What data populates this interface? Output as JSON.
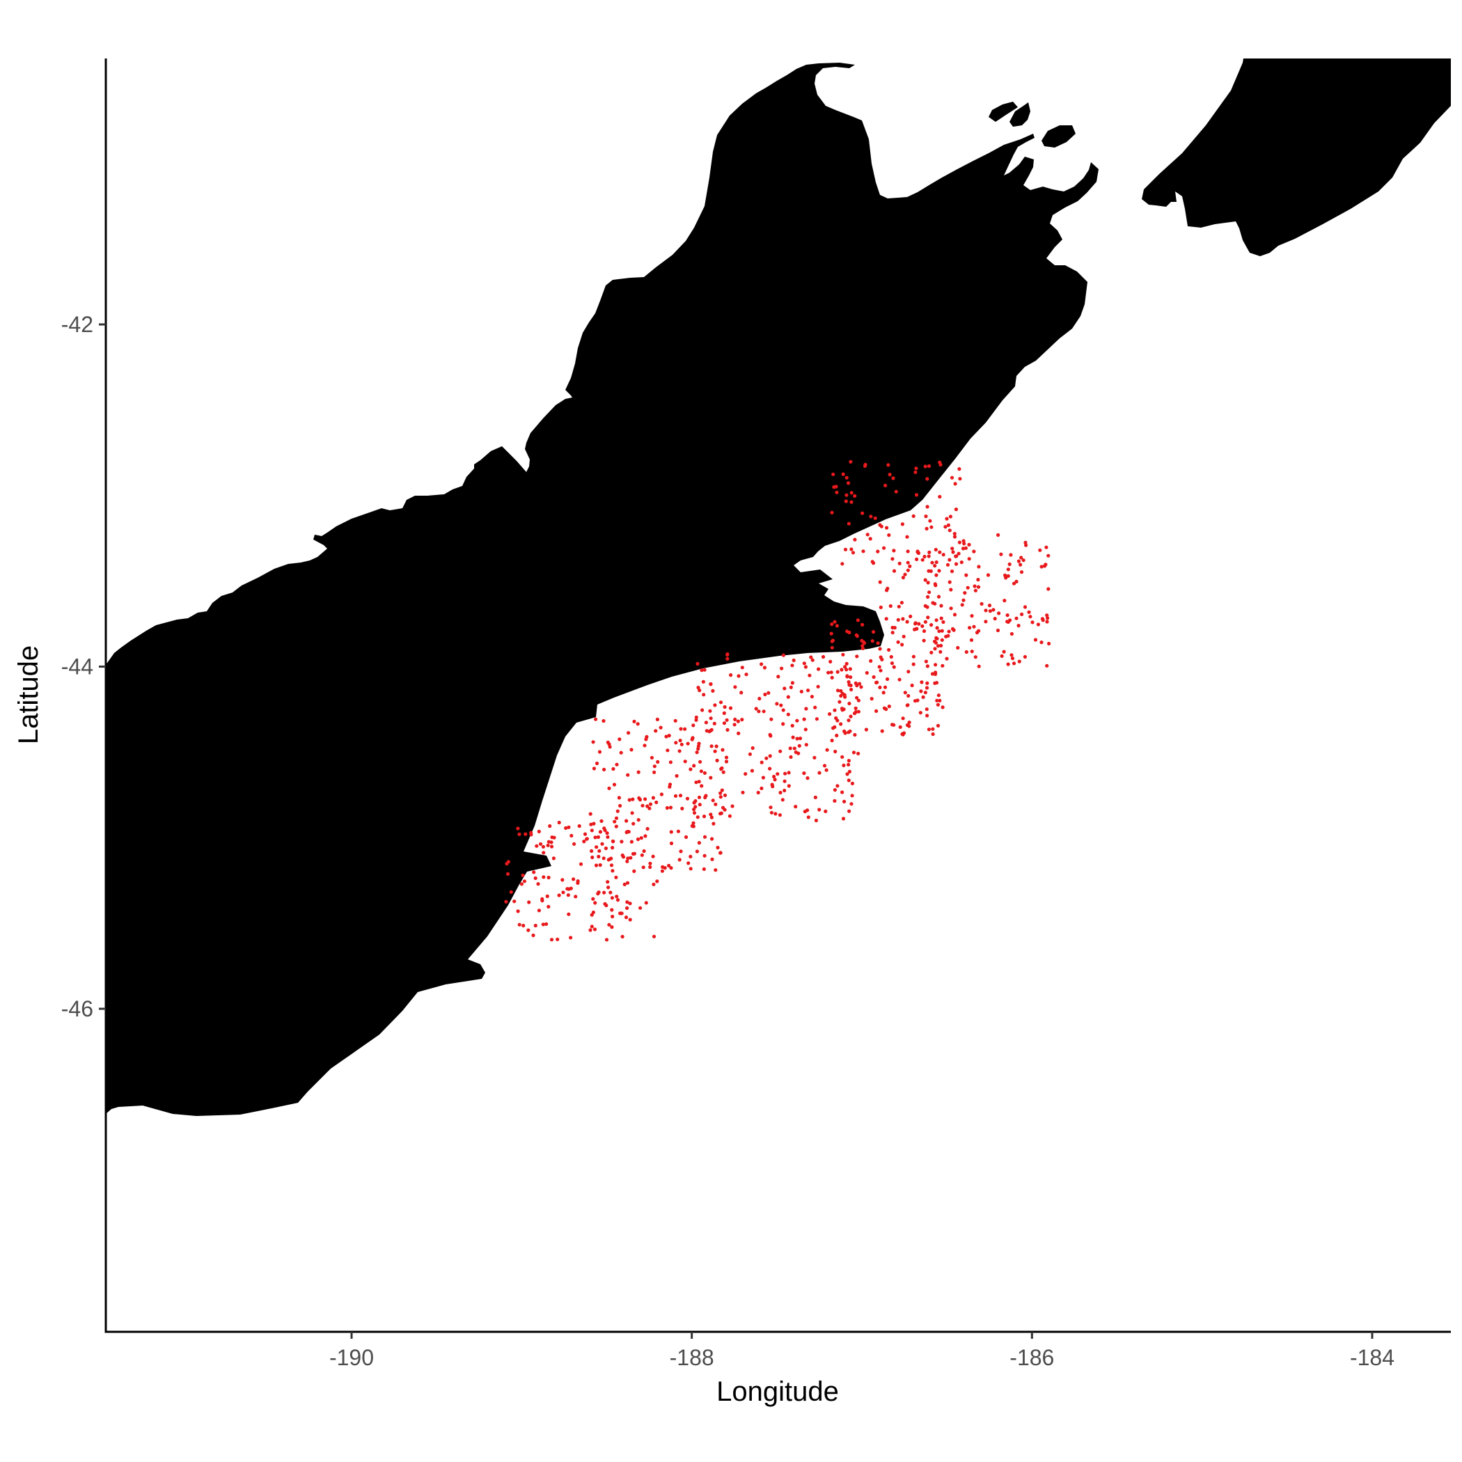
{
  "chart_data": {
    "type": "scatter",
    "title": "",
    "xlabel": "Longitude",
    "ylabel": "Latitude",
    "xlim": [
      -191.45,
      -183.55
    ],
    "ylim": [
      -47.9,
      -40.45
    ],
    "x_ticks": [
      -190,
      -188,
      -186,
      -184
    ],
    "y_ticks": [
      -42,
      -44,
      -46
    ],
    "x_tick_labels": [
      "-190",
      "-188",
      "-186",
      "-184"
    ],
    "y_tick_labels": [
      "-42",
      "-44",
      "-46"
    ],
    "point_color": "#e8191c",
    "land_color": "#000000",
    "grid": false,
    "points": {
      "description_count": 900,
      "regions": [
        {
          "x_range": [
            -189.1,
            -188.2
          ],
          "y_range": [
            -45.6,
            -44.9
          ],
          "n": 140
        },
        {
          "x_range": [
            -188.6,
            -187.8
          ],
          "y_range": [
            -45.2,
            -44.3
          ],
          "n": 160
        },
        {
          "x_range": [
            -188.0,
            -187.0
          ],
          "y_range": [
            -44.9,
            -43.9
          ],
          "n": 200
        },
        {
          "x_range": [
            -187.2,
            -186.5
          ],
          "y_range": [
            -44.4,
            -43.7
          ],
          "n": 150
        },
        {
          "x_range": [
            -186.7,
            -185.9
          ],
          "y_range": [
            -44.0,
            -43.2
          ],
          "n": 120
        },
        {
          "x_range": [
            -187.2,
            -186.4
          ],
          "y_range": [
            -43.4,
            -42.8
          ],
          "n": 80
        },
        {
          "x_range": [
            -186.9,
            -186.3
          ],
          "y_range": [
            -43.8,
            -43.3
          ],
          "n": 50
        }
      ]
    }
  }
}
